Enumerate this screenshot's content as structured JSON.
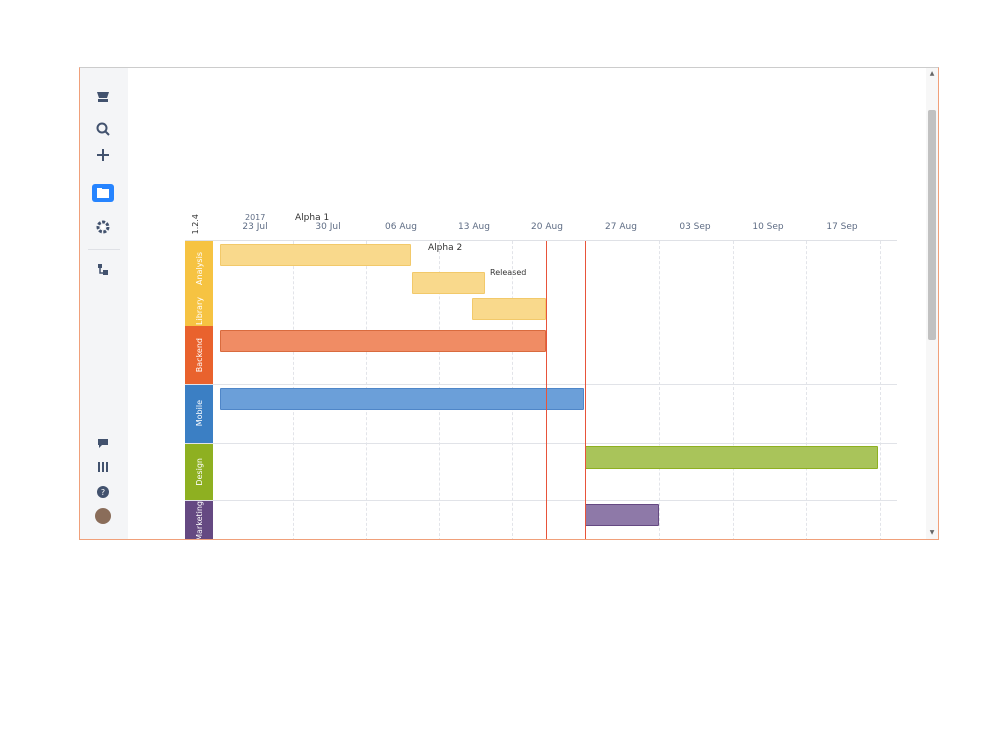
{
  "sidebar": {
    "icons": [
      {
        "name": "jira-logo-icon"
      },
      {
        "name": "search-icon"
      },
      {
        "name": "create-plus-icon"
      },
      {
        "name": "boards-icon"
      },
      {
        "name": "settings-gear-icon"
      },
      {
        "name": "hierarchy-icon"
      },
      {
        "name": "feedback-icon"
      },
      {
        "name": "app-switcher-icon"
      },
      {
        "name": "help-icon"
      },
      {
        "name": "profile-avatar-icon"
      }
    ]
  },
  "timeline": {
    "year": "2017",
    "version_label": "1.2.4",
    "ticks": [
      "23 Jul",
      "30 Jul",
      "06 Aug",
      "13 Aug",
      "20 Aug",
      "27 Aug",
      "03 Sep",
      "10 Sep",
      "17 Sep"
    ],
    "markers": {
      "alpha1": "Alpha 1",
      "alpha2": "Alpha 2",
      "released": "Released"
    },
    "lanes": [
      {
        "label": "Analysis",
        "color": "#f6c342"
      },
      {
        "label": "Library",
        "color": "#f6c342"
      },
      {
        "label": "Backend",
        "color": "#e9622d"
      },
      {
        "label": "Mobile",
        "color": "#3b7fc4"
      },
      {
        "label": "Design",
        "color": "#8eb021"
      },
      {
        "label": "Marketing",
        "color": "#654982"
      }
    ],
    "colors": {
      "yellow_bar": "#f9d98c",
      "orange_bar": "#f08c64",
      "blue_bar": "#6b9fd9",
      "green_bar": "#a9c45a",
      "purple_bar": "#8e79a8",
      "today": "#e8543a"
    }
  }
}
